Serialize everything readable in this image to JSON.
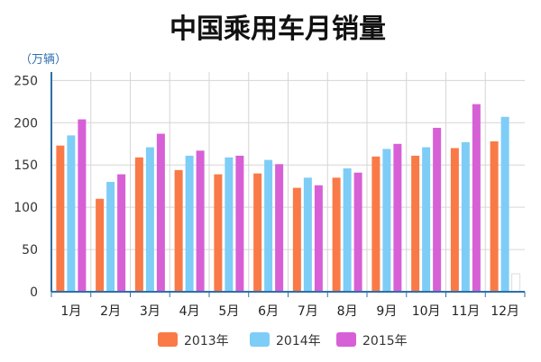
{
  "chart_data": {
    "type": "bar",
    "title": "中国乘用车月销量",
    "unit_label": "（万辆）",
    "categories": [
      "1月",
      "2月",
      "3月",
      "4月",
      "5月",
      "6月",
      "7月",
      "8月",
      "9月",
      "10月",
      "11月",
      "12月"
    ],
    "y_ticks": [
      "0",
      "50",
      "100",
      "150",
      "200",
      "250"
    ],
    "ylim": [
      0,
      260
    ],
    "grid": true,
    "legend_position": "bottom",
    "series": [
      {
        "name": "2013年",
        "color": "#f97a47",
        "values": [
          173,
          110,
          159,
          144,
          139,
          140,
          123,
          135,
          160,
          161,
          170,
          178
        ]
      },
      {
        "name": "2014年",
        "color": "#7ecdf7",
        "values": [
          185,
          130,
          171,
          161,
          159,
          156,
          135,
          146,
          169,
          171,
          177,
          207
        ]
      },
      {
        "name": "2015年",
        "color": "#d760d6",
        "values": [
          204,
          139,
          187,
          167,
          161,
          151,
          126,
          141,
          175,
          194,
          222,
          null
        ]
      }
    ]
  }
}
